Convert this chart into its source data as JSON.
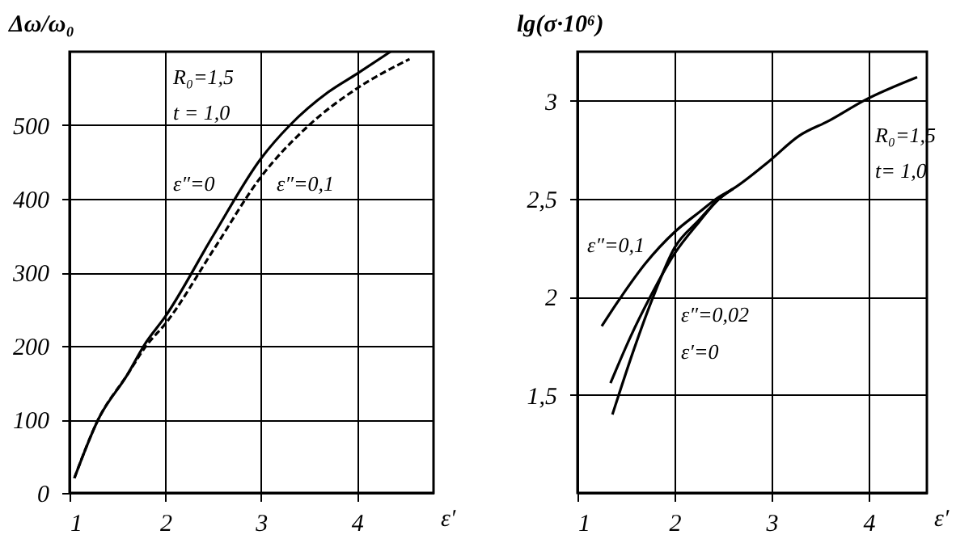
{
  "chart_data": [
    {
      "type": "line",
      "xlabel": "ε′",
      "ylabel": "Δω/ω₀",
      "xlim": [
        1,
        4.8
      ],
      "ylim": [
        0,
        600
      ],
      "xticks": [
        1,
        2,
        3,
        4
      ],
      "yticks": [
        0,
        100,
        200,
        300,
        400,
        500
      ],
      "grid": true,
      "series": [
        {
          "color": "#000000",
          "line_style": "solid",
          "x": [
            1.05,
            1.3,
            1.6,
            1.8,
            2.0,
            2.5,
            3.0,
            3.3,
            3.7,
            4.0,
            4.35
          ],
          "values": [
            20,
            100,
            160,
            205,
            240,
            350,
            455,
            500,
            545,
            570,
            600
          ]
        },
        {
          "color": "#000000",
          "line_style": "dashed",
          "x": [
            1.05,
            1.3,
            1.6,
            1.8,
            2.0,
            2.5,
            3.0,
            3.5,
            4.0,
            4.55
          ],
          "values": [
            20,
            100,
            160,
            200,
            230,
            330,
            430,
            500,
            550,
            590
          ]
        }
      ],
      "annotations": [
        "R₀=1,5",
        "t = 1,0",
        "ε″=0",
        "ε″=0,1"
      ]
    },
    {
      "type": "line",
      "xlabel": "ε′",
      "ylabel": "lg(σ·10⁶)",
      "xlim": [
        1,
        4.6
      ],
      "ylim": [
        1,
        3.25
      ],
      "xticks": [
        1,
        2,
        3,
        4
      ],
      "yticks": [
        {
          "value": 1.5,
          "label": "1,5"
        },
        2,
        {
          "value": 2.5,
          "label": "2,5"
        },
        3
      ],
      "grid": true,
      "series": [
        {
          "color": "#000000",
          "line_style": "solid",
          "x": [
            1.25,
            1.45,
            1.7,
            2.0,
            2.25,
            2.46,
            2.6,
            2.97,
            3.28,
            3.6,
            3.95,
            4.5
          ],
          "values": [
            1.85,
            2.0,
            2.17,
            2.33,
            2.43,
            2.51,
            2.55,
            2.69,
            2.82,
            2.9,
            3.0,
            3.12
          ]
        },
        {
          "color": "#000000",
          "line_style": "solid",
          "x": [
            1.34,
            1.55,
            1.75,
            2.0,
            2.25,
            2.46,
            2.6
          ],
          "values": [
            1.56,
            1.8,
            2.0,
            2.22,
            2.38,
            2.5,
            2.55
          ]
        },
        {
          "color": "#000000",
          "line_style": "solid",
          "x": [
            1.36,
            1.58,
            1.78,
            2.0,
            2.25,
            2.46,
            2.6
          ],
          "values": [
            1.4,
            1.73,
            2.0,
            2.25,
            2.39,
            2.5,
            2.55
          ]
        }
      ],
      "annotations": [
        "R₀=1,5",
        "t= 1,0",
        "ε″=0,1",
        "ε″=0,02",
        "ε′=0"
      ]
    }
  ]
}
